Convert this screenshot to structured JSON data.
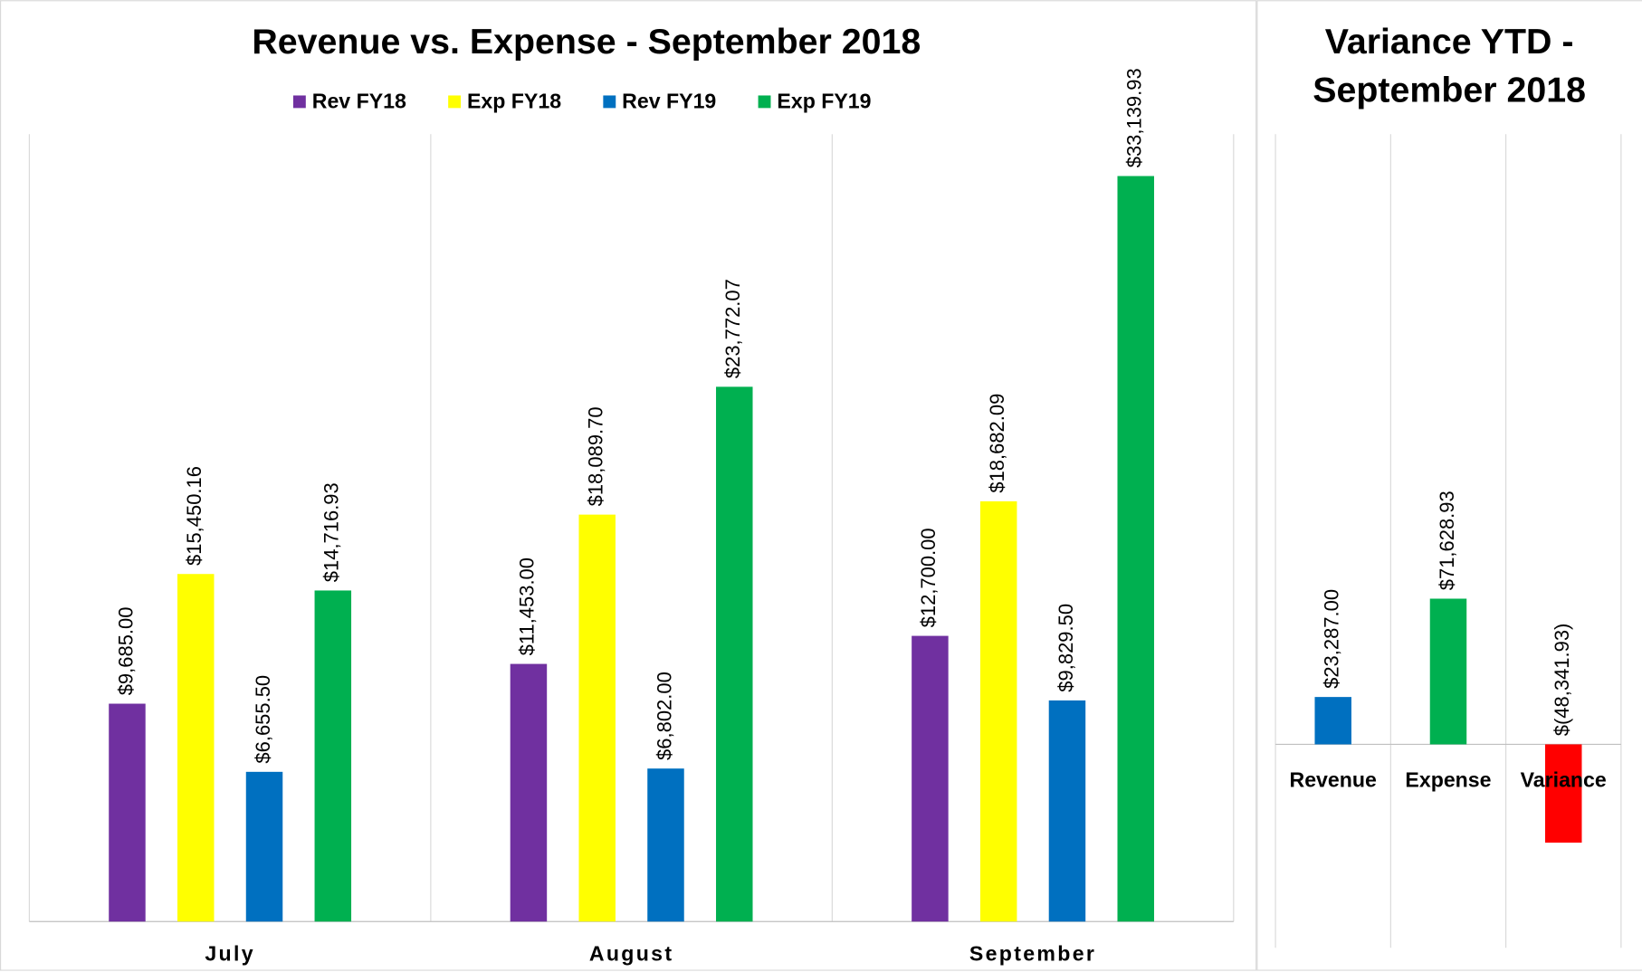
{
  "chart_data": [
    {
      "type": "bar",
      "title": "Revenue vs. Expense - September 2018",
      "categories": [
        "July",
        "August",
        "September"
      ],
      "series": [
        {
          "name": "Rev FY18",
          "color": "#7030a0",
          "values": [
            9685.0,
            11453.0,
            12700.0
          ],
          "value_labels": [
            "$9,685.00",
            "$11,453.00",
            "$12,700.00"
          ]
        },
        {
          "name": "Exp FY18",
          "color": "#ffff00",
          "values": [
            15450.16,
            18089.7,
            18682.09
          ],
          "value_labels": [
            "$15,450.16",
            "$18,089.70",
            "$18,682.09"
          ]
        },
        {
          "name": "Rev FY19",
          "color": "#0070c0",
          "values": [
            6655.5,
            6802.0,
            9829.5
          ],
          "value_labels": [
            "$6,655.50",
            "$6,802.00",
            "$9,829.50"
          ]
        },
        {
          "name": "Exp FY19",
          "color": "#00b050",
          "values": [
            14716.93,
            23772.07,
            33139.93
          ],
          "value_labels": [
            "$14,716.93",
            "$23,772.07",
            "$33,139.93"
          ]
        }
      ],
      "ylim": [
        0,
        35000
      ],
      "legend": "top"
    },
    {
      "type": "bar",
      "title": [
        "Variance YTD -",
        "September 2018"
      ],
      "categories": [
        "Revenue",
        "Expense",
        "Variance"
      ],
      "values": [
        23287.0,
        71628.93,
        -48341.93
      ],
      "value_labels": [
        "$23,287.00",
        "$71,628.93",
        "$(48,341.93)"
      ],
      "colors": [
        "#0070c0",
        "#00b050",
        "#ff0000"
      ],
      "ylim": [
        -100000,
        300000
      ]
    }
  ]
}
